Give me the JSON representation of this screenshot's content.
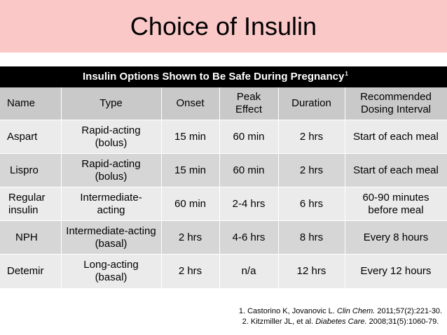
{
  "slide": {
    "title": "Choice of Insulin",
    "band_color": "#fbc8c8"
  },
  "table": {
    "caption": "Insulin Options Shown to Be Safe During Pregnancy",
    "caption_ref": "1",
    "headers": [
      "Name",
      "Type",
      "Onset",
      "Peak Effect",
      "Duration",
      "Recommended Dosing Interval"
    ],
    "rows": [
      {
        "name": "Aspart",
        "type": "Rapid-acting (bolus)",
        "onset": "15 min",
        "peak": "60 min",
        "duration": "2 hrs",
        "interval": "Start of each meal"
      },
      {
        "name": "Lispro",
        "type": "Rapid-acting (bolus)",
        "onset": "15 min",
        "peak": "60 min",
        "duration": "2 hrs",
        "interval": "Start of each meal"
      },
      {
        "name": "Regular insulin",
        "type": "Intermediate-acting",
        "onset": "60 min",
        "peak": "2-4 hrs",
        "duration": "6 hrs",
        "interval": "60-90 minutes before meal"
      },
      {
        "name": "NPH",
        "type": "Intermediate-acting (basal)",
        "onset": "2 hrs",
        "peak": "4-6 hrs",
        "duration": "8 hrs",
        "interval": "Every 8 hours"
      },
      {
        "name": "Detemir",
        "type": "Long-acting (basal)",
        "onset": "2 hrs",
        "peak": "n/a",
        "duration": "12 hrs",
        "interval": "Every 12 hours"
      }
    ]
  },
  "references": [
    {
      "authors": "1. Castorino K, Jovanovic L. ",
      "journal": "Clin Chem.",
      "details": " 2011;57(2):221-30."
    },
    {
      "authors": "2. Kitzmiller JL, et al. ",
      "journal": "Diabetes Care.",
      "details": " 2008;31(5):1060-79."
    }
  ]
}
